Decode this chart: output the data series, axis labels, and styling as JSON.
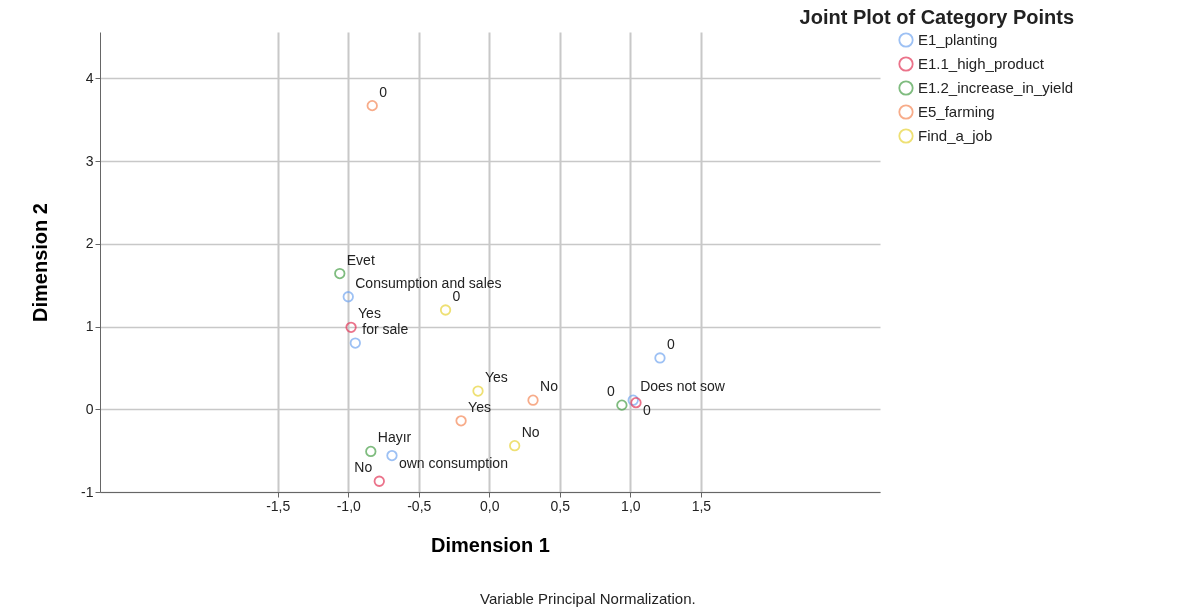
{
  "chart_data": {
    "type": "scatter",
    "title": "Joint Plot of Category Points",
    "xlabel": "Dimension 1",
    "ylabel": "Dimension 2",
    "xlim": [
      -2.76,
      2.77
    ],
    "ylim": [
      -1,
      4.56
    ],
    "xticks": [
      {
        "value": -1.5,
        "label": "-1,5"
      },
      {
        "value": -1,
        "label": "-1,0"
      },
      {
        "value": -0.5,
        "label": "-0,5"
      },
      {
        "value": 0,
        "label": "0,0"
      },
      {
        "value": 0.5,
        "label": "0,5"
      },
      {
        "value": 1,
        "label": "1,0"
      },
      {
        "value": 1.5,
        "label": "1,5"
      }
    ],
    "yticks": [
      -1,
      0,
      1,
      2,
      3,
      4
    ],
    "grid": true,
    "legend": "top right",
    "marker": "circle",
    "series": [
      {
        "name": "E1_planting",
        "color": "#75a7f0",
        "x": [
          -1.0,
          -0.95,
          -0.69,
          1.21,
          1.02
        ],
        "values": [
          1.36,
          0.8,
          -0.56,
          0.62,
          0.11
        ]
      },
      {
        "name": "E1.1_high_product",
        "color": "#e3385a",
        "x": [
          -0.98,
          -0.78,
          1.04
        ],
        "values": [
          0.99,
          -0.87,
          0.08
        ]
      },
      {
        "name": "E1.2_increase_in_yield",
        "color": "#4aa04a",
        "x": [
          -1.06,
          -0.84,
          0.94
        ],
        "values": [
          1.64,
          -0.51,
          0.05
        ]
      },
      {
        "name": "E5_farming",
        "color": "#f58a5a",
        "x": [
          -0.83,
          -0.2,
          0.31
        ],
        "values": [
          3.67,
          -0.14,
          0.11
        ]
      },
      {
        "name": "Find_a_job",
        "color": "#e8d43a",
        "x": [
          -0.31,
          -0.08,
          0.18
        ],
        "values": [
          1.2,
          0.22,
          -0.44
        ]
      }
    ],
    "annotations": [
      {
        "text": "Consumption and sales",
        "x": -1.0,
        "y": 1.36
      },
      {
        "text": "for sale",
        "x": -0.95,
        "y": 0.8
      },
      {
        "text": "own consumption",
        "x": -0.69,
        "y": -0.56
      },
      {
        "text": "0",
        "x": 1.21,
        "y": 0.62
      },
      {
        "text": "Does not sow",
        "x": 1.02,
        "y": 0.11
      },
      {
        "text": "Yes",
        "x": -0.98,
        "y": 0.99
      },
      {
        "text": "No",
        "x": -0.78,
        "y": -0.87
      },
      {
        "text": "0",
        "x": 1.04,
        "y": 0.08
      },
      {
        "text": "Evet",
        "x": -1.06,
        "y": 1.64
      },
      {
        "text": "Hayır",
        "x": -0.84,
        "y": -0.51
      },
      {
        "text": "0",
        "x": 0.94,
        "y": 0.05
      },
      {
        "text": "0",
        "x": -0.83,
        "y": 3.67
      },
      {
        "text": "Yes",
        "x": -0.2,
        "y": -0.14
      },
      {
        "text": "No",
        "x": 0.31,
        "y": 0.11
      },
      {
        "text": "0",
        "x": -0.31,
        "y": 1.2
      },
      {
        "text": "Yes",
        "x": -0.08,
        "y": 0.22
      },
      {
        "text": "No",
        "x": 0.18,
        "y": -0.44
      },
      "Variable Principal Normalization."
    ]
  }
}
